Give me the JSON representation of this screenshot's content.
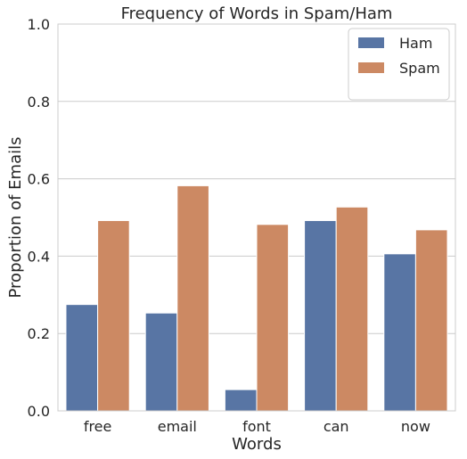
{
  "chart_data": {
    "type": "bar",
    "title": "Frequency of Words in Spam/Ham",
    "xlabel": "Words",
    "ylabel": "Proportion of Emails",
    "ylim": [
      0,
      1
    ],
    "yticks": [
      "0.0",
      "0.2",
      "0.4",
      "0.6",
      "0.8",
      "1.0"
    ],
    "categories": [
      "free",
      "email",
      "font",
      "can",
      "now"
    ],
    "series": [
      {
        "name": "Ham",
        "color": "#5875a4",
        "values": [
          0.275,
          0.253,
          0.055,
          0.492,
          0.406
        ]
      },
      {
        "name": "Spam",
        "color": "#cc8963",
        "values": [
          0.492,
          0.582,
          0.482,
          0.527,
          0.468
        ]
      }
    ],
    "grid": "horizontal",
    "legend_position": "top-right"
  }
}
